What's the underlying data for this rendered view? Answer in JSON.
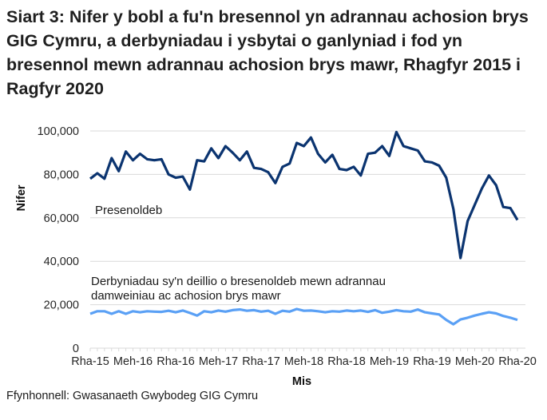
{
  "title": "Siart 3: Nifer y bobl a fu'n bresennol yn adrannau achosion brys GIG Cymru, a derbyniadau i ysbytai o ganlyniad i fod yn bresennol mewn adrannau achosion brys mawr, Rhagfyr 2015 i Ragfyr 2020",
  "source": "Ffynhonnell: Gwasanaeth Gwybodeg GIG Cymru",
  "colors": {
    "attendances": "#0b3470",
    "admissions": "#5aa0f5",
    "grid": "#d9d9d9"
  },
  "chart_data": {
    "type": "line",
    "title": "Siart 3: Nifer y bobl a fu'n bresennol yn adrannau achosion brys GIG Cymru, a derbyniadau i ysbytai o ganlyniad i fod yn bresennol mewn adrannau achosion brys mawr, Rhagfyr 2015 i Ragfyr 2020",
    "xlabel": "Mis",
    "ylabel": "Nifer",
    "ylim": [
      0,
      100000
    ],
    "yticks": [
      "0",
      "20,000",
      "40,000",
      "60,000",
      "80,000",
      "100,000"
    ],
    "xtick_labels": [
      "Rha-15",
      "Meh-16",
      "Rha-16",
      "Meh-17",
      "Rha-17",
      "Meh-18",
      "Rha-18",
      "Meh-19",
      "Rha-19",
      "Meh-20",
      "Rha-20"
    ],
    "grid": true,
    "x": [
      "Dec-15",
      "Jan-16",
      "Feb-16",
      "Mar-16",
      "Apr-16",
      "May-16",
      "Jun-16",
      "Jul-16",
      "Aug-16",
      "Sep-16",
      "Oct-16",
      "Nov-16",
      "Dec-16",
      "Jan-17",
      "Feb-17",
      "Mar-17",
      "Apr-17",
      "May-17",
      "Jun-17",
      "Jul-17",
      "Aug-17",
      "Sep-17",
      "Oct-17",
      "Nov-17",
      "Dec-17",
      "Jan-18",
      "Feb-18",
      "Mar-18",
      "Apr-18",
      "May-18",
      "Jun-18",
      "Jul-18",
      "Aug-18",
      "Sep-18",
      "Oct-18",
      "Nov-18",
      "Dec-18",
      "Jan-19",
      "Feb-19",
      "Mar-19",
      "Apr-19",
      "May-19",
      "Jun-19",
      "Jul-19",
      "Aug-19",
      "Sep-19",
      "Oct-19",
      "Nov-19",
      "Dec-19",
      "Jan-20",
      "Feb-20",
      "Mar-20",
      "Apr-20",
      "May-20",
      "Jun-20",
      "Jul-20",
      "Aug-20",
      "Sep-20",
      "Oct-20",
      "Nov-20",
      "Dec-20"
    ],
    "series": [
      {
        "name": "Presenoldeb",
        "values": [
          78000,
          80500,
          78000,
          87500,
          81500,
          90500,
          86500,
          89500,
          87000,
          86500,
          87000,
          80000,
          78500,
          79000,
          73000,
          86500,
          86000,
          92000,
          87500,
          93000,
          90000,
          86500,
          90500,
          83000,
          82500,
          81000,
          76000,
          83500,
          85000,
          94500,
          93000,
          97000,
          89500,
          85500,
          89000,
          82500,
          82000,
          83500,
          79500,
          89500,
          90000,
          93000,
          88500,
          99500,
          93000,
          92000,
          91000,
          86000,
          85500,
          84000,
          78500,
          64000,
          41500,
          58500,
          66000,
          73500,
          79500,
          75000,
          65000,
          64500,
          59000
        ]
      },
      {
        "name": "Derbyniadau sy'n deillio o bresenoldeb mewn adrannau damweiniau ac achosion brys mawr",
        "values": [
          15800,
          17000,
          17000,
          15800,
          17000,
          15800,
          17000,
          16500,
          17000,
          16800,
          16700,
          17200,
          16500,
          17300,
          16200,
          15000,
          17000,
          16500,
          17300,
          16800,
          17500,
          17800,
          17200,
          17500,
          16800,
          17200,
          15800,
          17200,
          16800,
          18000,
          17200,
          17300,
          17000,
          16500,
          17000,
          16800,
          17300,
          17000,
          17300,
          16700,
          17500,
          16300,
          16800,
          17500,
          17000,
          16800,
          17800,
          16500,
          16000,
          15500,
          13000,
          11000,
          13200,
          14000,
          15000,
          15800,
          16500,
          16000,
          14800,
          14000,
          13000
        ]
      }
    ],
    "legend": "inline annotations"
  },
  "axis": {
    "ylabel": "Nifer",
    "xlabel": "Mis",
    "yticks": [
      "0",
      "20,000",
      "40,000",
      "60,000",
      "80,000",
      "100,000"
    ],
    "xticks": [
      "Rha-15",
      "Meh-16",
      "Rha-16",
      "Meh-17",
      "Rha-17",
      "Meh-18",
      "Rha-18",
      "Meh-19",
      "Rha-19",
      "Meh-20",
      "Rha-20"
    ]
  },
  "annotations": {
    "attendances": "Presenoldeb",
    "admissions_line1": "Derbyniadau sy'n deillio o bresenoldeb mewn adrannau",
    "admissions_line2": "damweiniau ac achosion brys mawr"
  }
}
